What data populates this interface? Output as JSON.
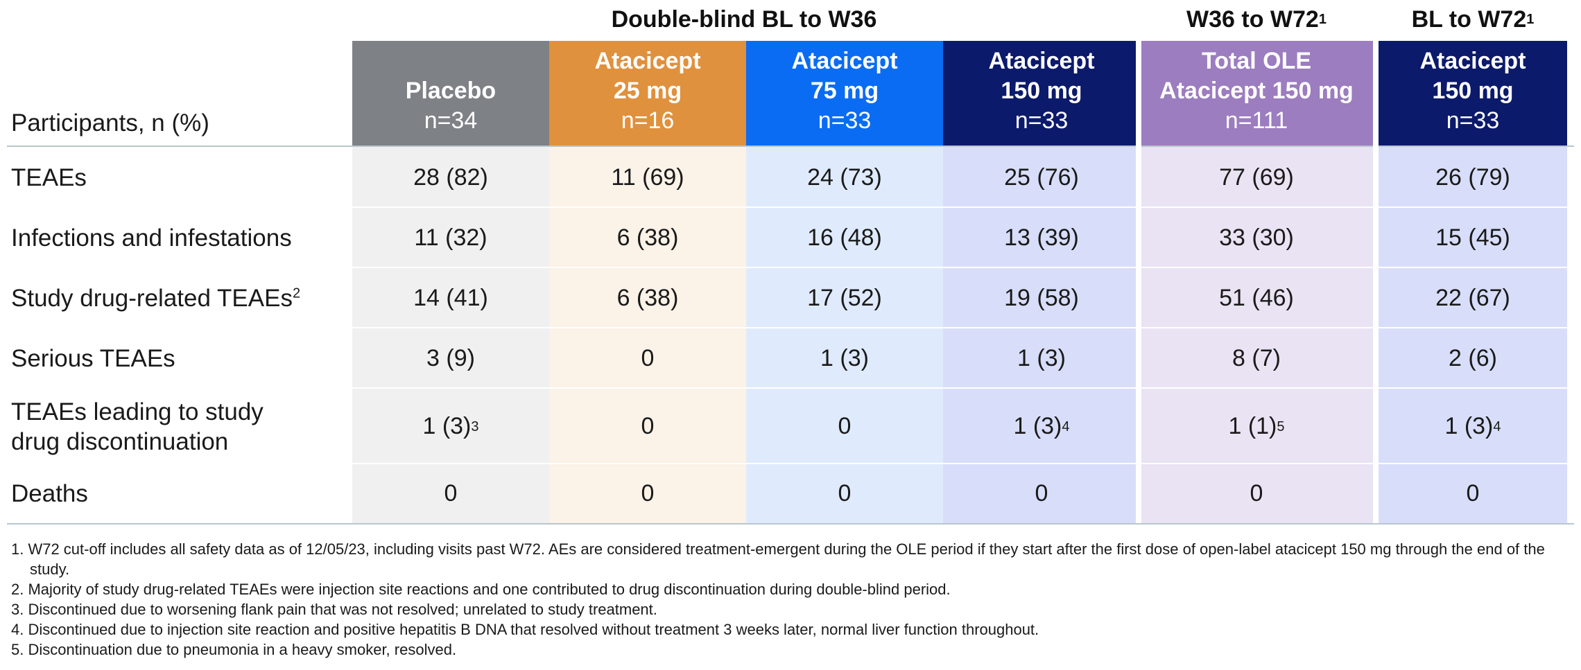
{
  "group_headers": {
    "double_blind": "Double-blind BL to W36",
    "ole_text": "W36 to W72",
    "ole_sup": "1",
    "bl_text": "BL to W72",
    "bl_sup": "1"
  },
  "row_label_header": "Participants, n (%)",
  "columns": [
    {
      "name_line1": "Placebo",
      "name_line2": "",
      "n": "n=34",
      "color": "#7e8185"
    },
    {
      "name_line1": "Atacicept",
      "name_line2": "25 mg",
      "n": "n=16",
      "color": "#e0913d"
    },
    {
      "name_line1": "Atacicept",
      "name_line2": "75 mg",
      "n": "n=33",
      "color": "#0a6cf3"
    },
    {
      "name_line1": "Atacicept",
      "name_line2": "150 mg",
      "n": "n=33",
      "color": "#0c1a6b"
    },
    {
      "name_line1": "Total OLE",
      "name_line2": "Atacicept 150 mg",
      "n": "n=111",
      "color": "#9c7dbf"
    },
    {
      "name_line1": "Atacicept",
      "name_line2": "150 mg",
      "n": "n=33",
      "color": "#0c1a6b"
    }
  ],
  "cell_colors": [
    "#f0f0f0",
    "#fbf2e8",
    "#dfebfd",
    "#d8def9",
    "#e9e3f3",
    "#d8def9"
  ],
  "rows": [
    {
      "label": "TEAEs",
      "label_sup": "",
      "label2": "",
      "values": [
        {
          "v": "28 (82)",
          "s": ""
        },
        {
          "v": "11 (69)",
          "s": ""
        },
        {
          "v": "24 (73)",
          "s": ""
        },
        {
          "v": "25 (76)",
          "s": ""
        },
        {
          "v": "77 (69)",
          "s": ""
        },
        {
          "v": "26 (79)",
          "s": ""
        }
      ]
    },
    {
      "label": "Infections and infestations",
      "label_sup": "",
      "label2": "",
      "values": [
        {
          "v": "11 (32)",
          "s": ""
        },
        {
          "v": "6 (38)",
          "s": ""
        },
        {
          "v": "16 (48)",
          "s": ""
        },
        {
          "v": "13 (39)",
          "s": ""
        },
        {
          "v": "33 (30)",
          "s": ""
        },
        {
          "v": "15 (45)",
          "s": ""
        }
      ]
    },
    {
      "label": "Study drug-related TEAEs",
      "label_sup": "2",
      "label2": "",
      "values": [
        {
          "v": "14 (41)",
          "s": ""
        },
        {
          "v": "6 (38)",
          "s": ""
        },
        {
          "v": "17 (52)",
          "s": ""
        },
        {
          "v": "19 (58)",
          "s": ""
        },
        {
          "v": "51 (46)",
          "s": ""
        },
        {
          "v": "22 (67)",
          "s": ""
        }
      ]
    },
    {
      "label": "Serious TEAEs",
      "label_sup": "",
      "label2": "",
      "values": [
        {
          "v": "3 (9)",
          "s": ""
        },
        {
          "v": "0",
          "s": ""
        },
        {
          "v": "1 (3)",
          "s": ""
        },
        {
          "v": "1 (3)",
          "s": ""
        },
        {
          "v": "8 (7)",
          "s": ""
        },
        {
          "v": "2 (6)",
          "s": ""
        }
      ]
    },
    {
      "label": "TEAEs leading to study",
      "label_sup": "",
      "label2": "drug discontinuation",
      "values": [
        {
          "v": "1 (3)",
          "s": "3"
        },
        {
          "v": "0",
          "s": ""
        },
        {
          "v": "0",
          "s": ""
        },
        {
          "v": "1 (3)",
          "s": "4"
        },
        {
          "v": "1 (1)",
          "s": "5"
        },
        {
          "v": "1 (3)",
          "s": "4"
        }
      ]
    },
    {
      "label": "Deaths",
      "label_sup": "",
      "label2": "",
      "values": [
        {
          "v": "0",
          "s": ""
        },
        {
          "v": "0",
          "s": ""
        },
        {
          "v": "0",
          "s": ""
        },
        {
          "v": "0",
          "s": ""
        },
        {
          "v": "0",
          "s": ""
        },
        {
          "v": "0",
          "s": ""
        }
      ]
    }
  ],
  "footnotes": [
    "1. W72 cut-off includes all safety data as of 12/05/23, including visits past W72. AEs are considered treatment-emergent during the OLE period if they start after the first dose of open-label atacicept 150 mg through the end of the study.",
    "2. Majority of study drug-related TEAEs were injection site reactions and one contributed to drug discontinuation during double-blind period.",
    "3. Discontinued due to worsening flank pain that was not resolved; unrelated to study treatment.",
    "4. Discontinued due to injection site reaction and positive hepatitis B DNA that resolved without treatment 3 weeks later, normal liver function throughout.",
    "5. Discontinuation due to pneumonia in a heavy smoker, resolved."
  ]
}
